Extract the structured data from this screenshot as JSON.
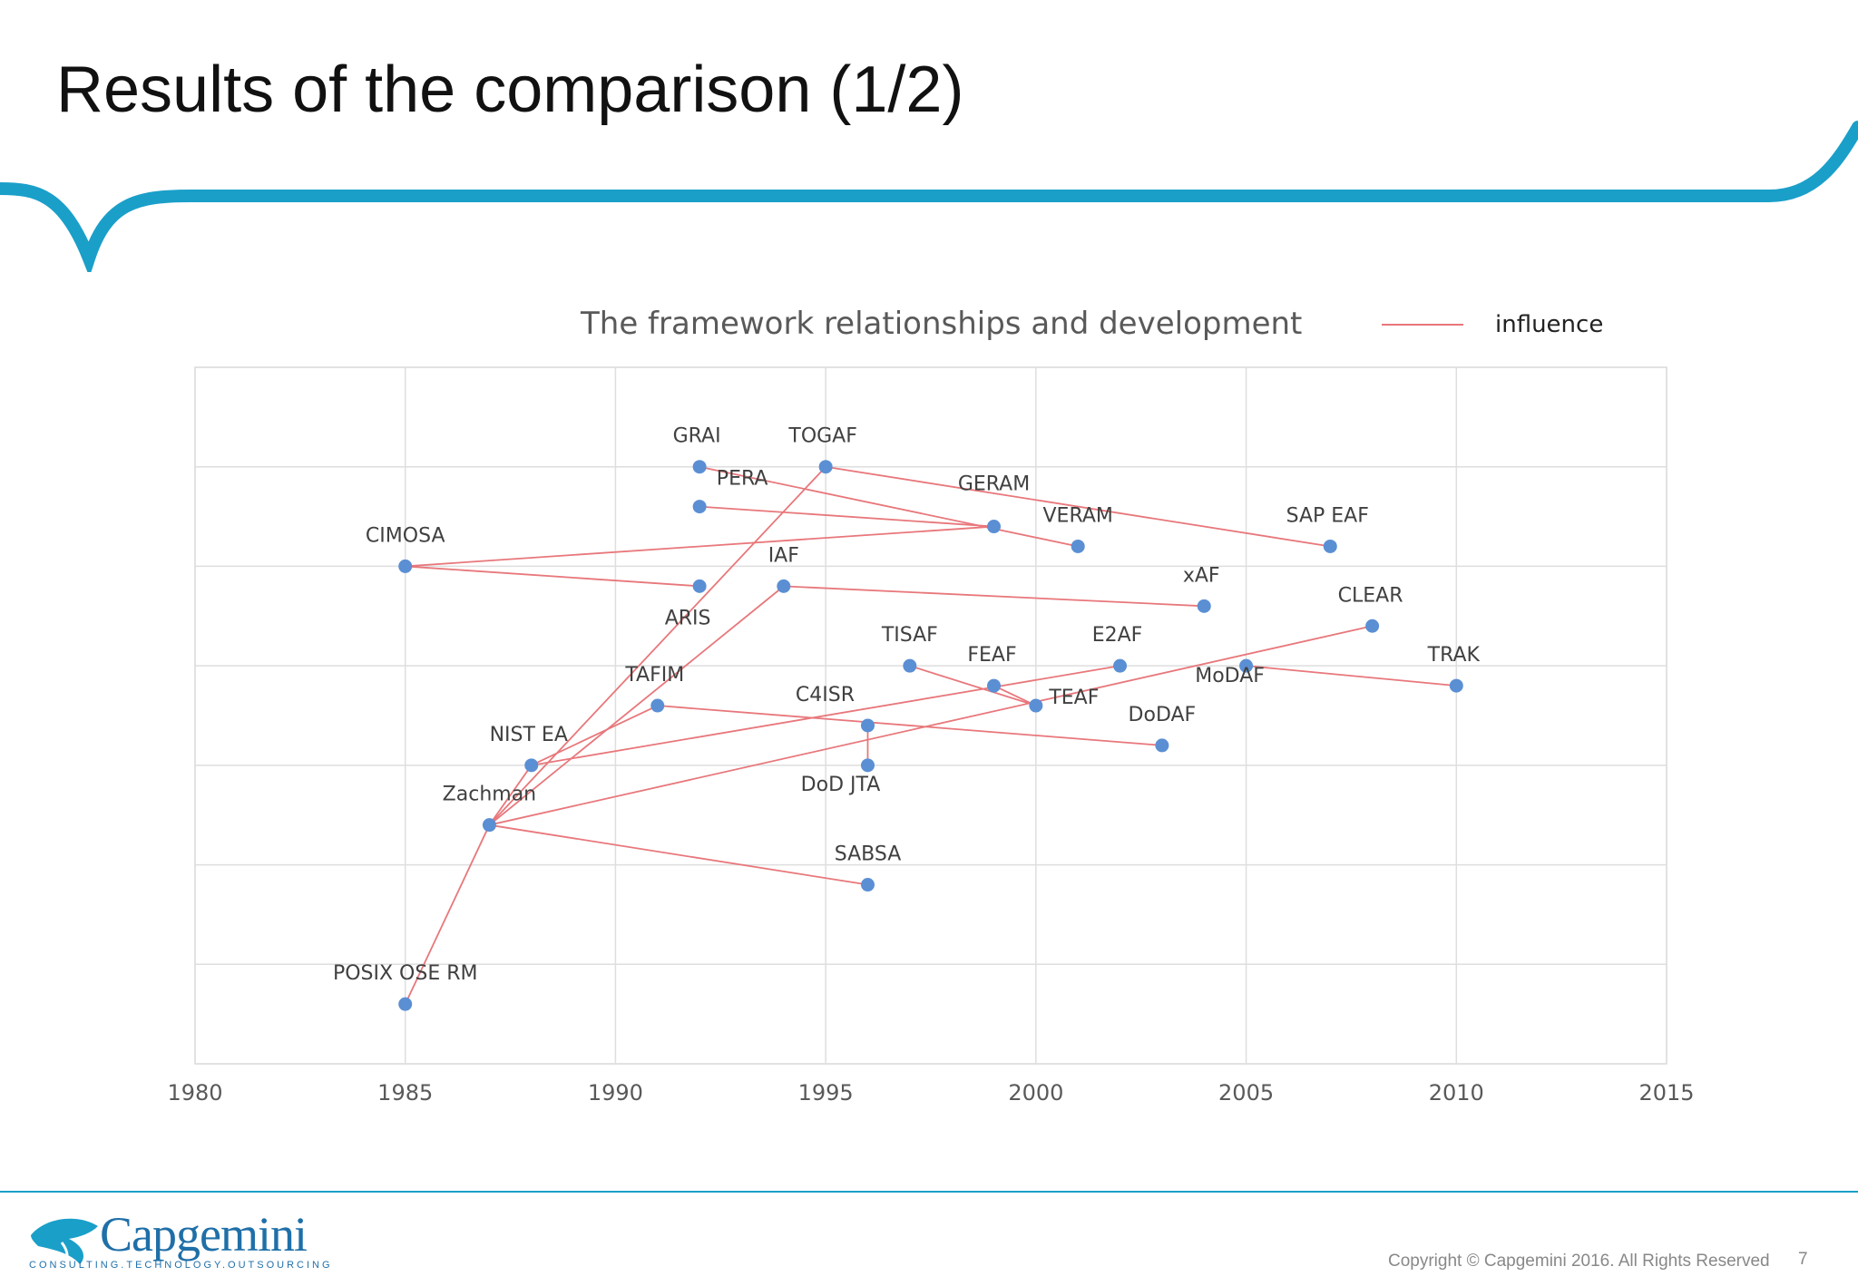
{
  "slide": {
    "title": "Results of the comparison (1/2)",
    "copyright": "Copyright © Capgemini 2016. All Rights Reserved",
    "page_number": "7"
  },
  "brand": {
    "name": "Capgemini",
    "tagline": "CONSULTING.TECHNOLOGY.OUTSOURCING",
    "accent_color": "#1a9fc9"
  },
  "chart_data": {
    "type": "scatter",
    "title": "The framework relationships and development",
    "legend": {
      "label": "influence",
      "color": "#e8777b",
      "placement": "top-right"
    },
    "xlim": [
      1980,
      2015
    ],
    "x_ticks": [
      1980,
      1985,
      1990,
      1995,
      2000,
      2005,
      2010,
      2015
    ],
    "ylim": [
      0,
      7
    ],
    "y_gridlines": [
      1,
      2,
      3,
      4,
      5,
      6,
      7
    ],
    "grid": true,
    "point_color": "#5b8fd4",
    "points": [
      {
        "id": "posix",
        "label": "POSIX OSE RM",
        "x": 1985,
        "y": 0.6
      },
      {
        "id": "zachman",
        "label": "Zachman",
        "x": 1987,
        "y": 2.4
      },
      {
        "id": "sabsa",
        "label": "SABSA",
        "x": 1996,
        "y": 1.8
      },
      {
        "id": "nistea",
        "label": "NIST EA",
        "x": 1988,
        "y": 3.0
      },
      {
        "id": "dodjta",
        "label": "DoD JTA",
        "x": 1996,
        "y": 3.0
      },
      {
        "id": "c4isr",
        "label": "C4ISR",
        "x": 1996,
        "y": 3.4
      },
      {
        "id": "tafim",
        "label": "TAFIM",
        "x": 1991,
        "y": 3.6
      },
      {
        "id": "dodaf",
        "label": "DoDAF",
        "x": 2003,
        "y": 3.2
      },
      {
        "id": "teaf",
        "label": "TEAF",
        "x": 2000,
        "y": 3.6
      },
      {
        "id": "feaf",
        "label": "FEAF",
        "x": 1999,
        "y": 3.8
      },
      {
        "id": "tisaf",
        "label": "TISAF",
        "x": 1997,
        "y": 4.0
      },
      {
        "id": "e2af",
        "label": "E2AF",
        "x": 2002,
        "y": 4.0
      },
      {
        "id": "modaf",
        "label": "MoDAF",
        "x": 2005,
        "y": 4.0
      },
      {
        "id": "trak",
        "label": "TRAK",
        "x": 2010,
        "y": 3.8
      },
      {
        "id": "clear",
        "label": "CLEAR",
        "x": 2008,
        "y": 4.4
      },
      {
        "id": "xaf",
        "label": "xAF",
        "x": 2004,
        "y": 4.6
      },
      {
        "id": "iaf",
        "label": "IAF",
        "x": 1994,
        "y": 4.8
      },
      {
        "id": "aris",
        "label": "ARIS",
        "x": 1992,
        "y": 4.8
      },
      {
        "id": "cimosa",
        "label": "CIMOSA",
        "x": 1985,
        "y": 5.0
      },
      {
        "id": "pera",
        "label": "PERA",
        "x": 1992,
        "y": 5.6
      },
      {
        "id": "geram",
        "label": "GERAM",
        "x": 1999,
        "y": 5.4
      },
      {
        "id": "veram",
        "label": "VERAM",
        "x": 2001,
        "y": 5.2
      },
      {
        "id": "sapeaf",
        "label": "SAP EAF",
        "x": 2007,
        "y": 5.2
      },
      {
        "id": "grai",
        "label": "GRAI",
        "x": 1992,
        "y": 6.0
      },
      {
        "id": "togaf",
        "label": "TOGAF",
        "x": 1995,
        "y": 6.0
      }
    ],
    "influences": [
      [
        "posix",
        "zachman"
      ],
      [
        "zachman",
        "togaf"
      ],
      [
        "zachman",
        "iaf"
      ],
      [
        "zachman",
        "nistea"
      ],
      [
        "zachman",
        "clear"
      ],
      [
        "zachman",
        "sabsa"
      ],
      [
        "nistea",
        "tafim"
      ],
      [
        "nistea",
        "e2af"
      ],
      [
        "tafim",
        "dodaf"
      ],
      [
        "c4isr",
        "dodjta"
      ],
      [
        "tisaf",
        "teaf"
      ],
      [
        "feaf",
        "teaf"
      ],
      [
        "modaf",
        "trak"
      ],
      [
        "togaf",
        "sapeaf"
      ],
      [
        "iaf",
        "xaf"
      ],
      [
        "cimosa",
        "aris"
      ],
      [
        "cimosa",
        "geram"
      ],
      [
        "grai",
        "veram"
      ],
      [
        "pera",
        "geram"
      ]
    ]
  }
}
